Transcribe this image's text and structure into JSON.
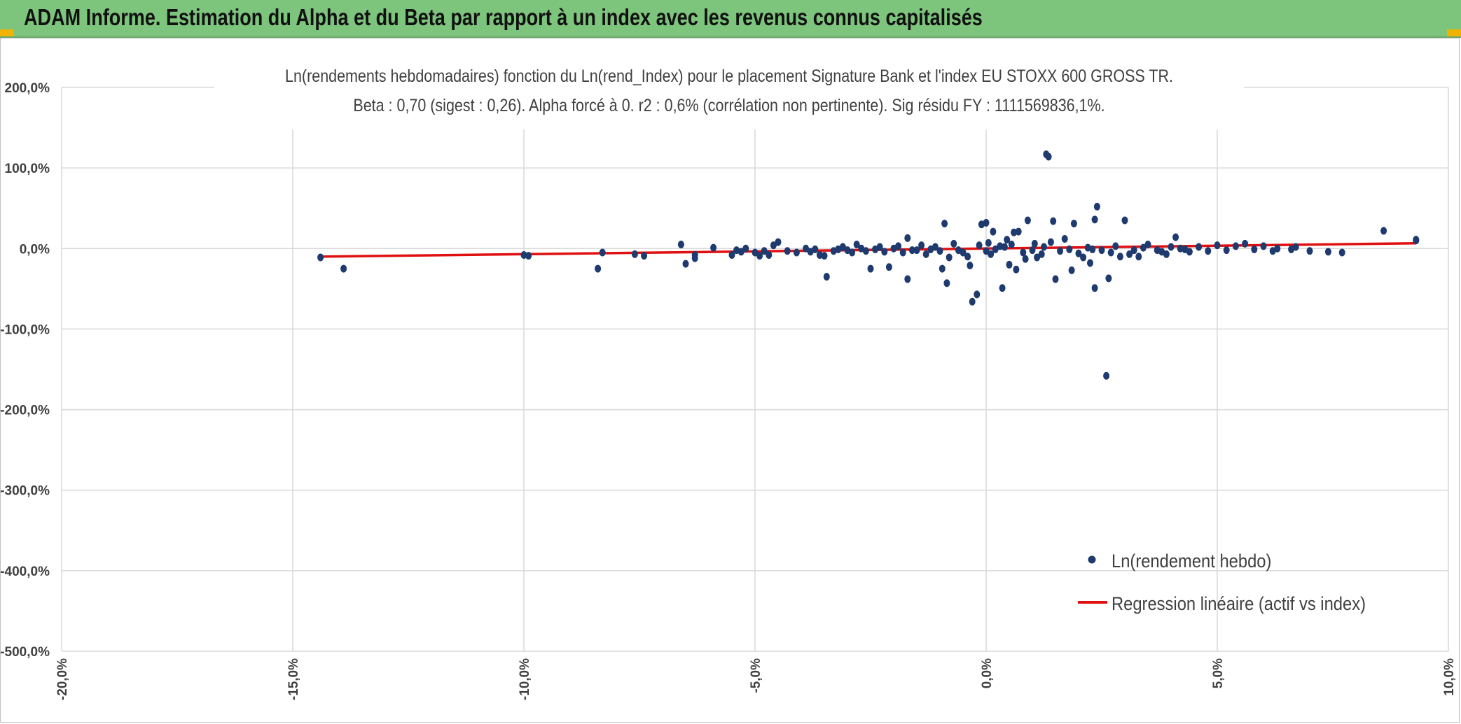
{
  "header": {
    "title": "ADAM Informe. Estimation du Alpha et du Beta par rapport à un index avec les revenus connus capitalisés"
  },
  "colors": {
    "header_bg": "#7dc47d",
    "accent": "#f0b400",
    "points": "#1f3a6e",
    "regression": "#e01010",
    "grid": "#d9d9d9"
  },
  "chart_data": {
    "type": "scatter",
    "title": "Ln(rendements hebdomadaires) fonction du Ln(rend_Index) pour le placement Signature Bank et l'index EU STOXX 600 GROSS TR.",
    "subtitle": "Beta : 0,70 (sigest : 0,26). Alpha forcé à 0. r2 : 0,6% (corrélation non pertinente). Sig résidu FY : 1111569836,1%.",
    "xlim": [
      -20,
      10
    ],
    "ylim": [
      -500,
      200
    ],
    "x_ticks": [
      "-20,0%",
      "-15,0%",
      "-10,0%",
      "-5,0%",
      "0,0%",
      "5,0%",
      "10,0%"
    ],
    "y_ticks": [
      "200,0%",
      "100,0%",
      "0,0%",
      "-100,0%",
      "-200,0%",
      "-300,0%",
      "-400,0%",
      "-500,0%"
    ],
    "grid": true,
    "legend_position": "bottom-right",
    "series": [
      {
        "name": "Ln(rendement hebdo)",
        "kind": "points",
        "points": [
          [
            -14.4,
            -11
          ],
          [
            -13.9,
            -25
          ],
          [
            -10.0,
            -8
          ],
          [
            -9.9,
            -9
          ],
          [
            -8.4,
            -25
          ],
          [
            -8.3,
            -5
          ],
          [
            -7.6,
            -7
          ],
          [
            -7.4,
            -9
          ],
          [
            -6.6,
            5
          ],
          [
            -6.5,
            -19
          ],
          [
            -6.3,
            -12
          ],
          [
            -6.3,
            -8
          ],
          [
            -5.9,
            1
          ],
          [
            -5.5,
            -8
          ],
          [
            -5.4,
            -2
          ],
          [
            -5.3,
            -4
          ],
          [
            -5.2,
            0
          ],
          [
            -5.0,
            -5
          ],
          [
            -4.9,
            -9
          ],
          [
            -4.8,
            -3
          ],
          [
            -4.7,
            -8
          ],
          [
            -4.6,
            4
          ],
          [
            -4.5,
            8
          ],
          [
            -4.3,
            -3
          ],
          [
            -4.1,
            -5
          ],
          [
            -3.9,
            0
          ],
          [
            -3.8,
            -4
          ],
          [
            -3.7,
            -1
          ],
          [
            -3.6,
            -8
          ],
          [
            -3.5,
            -9
          ],
          [
            -3.45,
            -35
          ],
          [
            -3.3,
            -3
          ],
          [
            -3.2,
            -1
          ],
          [
            -3.1,
            2
          ],
          [
            -3.0,
            -2
          ],
          [
            -2.9,
            -5
          ],
          [
            -2.8,
            5
          ],
          [
            -2.7,
            0
          ],
          [
            -2.6,
            -3
          ],
          [
            -2.5,
            -25
          ],
          [
            -2.4,
            -1
          ],
          [
            -2.3,
            2
          ],
          [
            -2.2,
            -4
          ],
          [
            -2.1,
            -23
          ],
          [
            -2.0,
            0
          ],
          [
            -1.9,
            3
          ],
          [
            -1.8,
            -5
          ],
          [
            -1.7,
            13
          ],
          [
            -1.6,
            -2
          ],
          [
            -1.5,
            -2
          ],
          [
            -1.7,
            -38
          ],
          [
            -1.4,
            4
          ],
          [
            -1.3,
            -7
          ],
          [
            -1.2,
            -1
          ],
          [
            -1.1,
            2
          ],
          [
            -1.0,
            -3
          ],
          [
            -0.95,
            -25
          ],
          [
            -0.9,
            31
          ],
          [
            -0.85,
            -43
          ],
          [
            -0.8,
            -11
          ],
          [
            -0.7,
            6
          ],
          [
            -0.6,
            -2
          ],
          [
            -0.5,
            -5
          ],
          [
            -0.4,
            -10
          ],
          [
            -0.35,
            -21
          ],
          [
            -0.3,
            -66
          ],
          [
            -0.2,
            -57
          ],
          [
            -0.15,
            4
          ],
          [
            -0.1,
            30
          ],
          [
            0.0,
            -3
          ],
          [
            0.0,
            32
          ],
          [
            0.05,
            7
          ],
          [
            0.1,
            -7
          ],
          [
            0.15,
            21
          ],
          [
            0.2,
            -1
          ],
          [
            0.3,
            3
          ],
          [
            0.35,
            -49
          ],
          [
            0.4,
            2
          ],
          [
            0.45,
            11
          ],
          [
            0.5,
            -20
          ],
          [
            0.55,
            5
          ],
          [
            0.6,
            20
          ],
          [
            0.65,
            -26
          ],
          [
            0.7,
            21
          ],
          [
            0.8,
            -5
          ],
          [
            0.85,
            -13
          ],
          [
            0.9,
            35
          ],
          [
            1.0,
            -2
          ],
          [
            1.05,
            6
          ],
          [
            1.1,
            -11
          ],
          [
            1.2,
            -7
          ],
          [
            1.25,
            2
          ],
          [
            1.3,
            117
          ],
          [
            1.35,
            114
          ],
          [
            1.4,
            8
          ],
          [
            1.45,
            34
          ],
          [
            1.5,
            -38
          ],
          [
            1.6,
            -3
          ],
          [
            1.7,
            12
          ],
          [
            1.8,
            -1
          ],
          [
            1.85,
            -27
          ],
          [
            1.9,
            31
          ],
          [
            2.0,
            -6
          ],
          [
            2.1,
            -11
          ],
          [
            2.2,
            1
          ],
          [
            2.25,
            -18
          ],
          [
            2.3,
            -1
          ],
          [
            2.35,
            36
          ],
          [
            2.4,
            52
          ],
          [
            2.35,
            -49
          ],
          [
            2.5,
            -2
          ],
          [
            2.6,
            -158
          ],
          [
            2.65,
            -37
          ],
          [
            2.7,
            -5
          ],
          [
            2.8,
            3
          ],
          [
            2.9,
            -10
          ],
          [
            3.0,
            35
          ],
          [
            3.1,
            -7
          ],
          [
            3.2,
            -2
          ],
          [
            3.3,
            -10
          ],
          [
            3.4,
            1
          ],
          [
            3.5,
            5
          ],
          [
            3.7,
            -2
          ],
          [
            3.8,
            -4
          ],
          [
            3.9,
            -7
          ],
          [
            4.0,
            2
          ],
          [
            4.1,
            14
          ],
          [
            4.2,
            0
          ],
          [
            4.3,
            -1
          ],
          [
            4.4,
            -4
          ],
          [
            4.6,
            2
          ],
          [
            4.8,
            -3
          ],
          [
            5.0,
            4
          ],
          [
            5.2,
            -2
          ],
          [
            5.4,
            3
          ],
          [
            5.6,
            6
          ],
          [
            5.8,
            -1
          ],
          [
            6.0,
            3
          ],
          [
            6.2,
            -3
          ],
          [
            6.3,
            0
          ],
          [
            6.6,
            -1
          ],
          [
            6.7,
            2
          ],
          [
            7.0,
            -3
          ],
          [
            7.4,
            -4
          ],
          [
            7.7,
            -5
          ],
          [
            8.6,
            22
          ],
          [
            9.3,
            10
          ],
          [
            9.3,
            11
          ]
        ]
      },
      {
        "name": "Regression linéaire (actif vs index)",
        "kind": "line",
        "points": [
          [
            -14.4,
            -10.1
          ],
          [
            9.3,
            6.5
          ]
        ]
      }
    ]
  }
}
